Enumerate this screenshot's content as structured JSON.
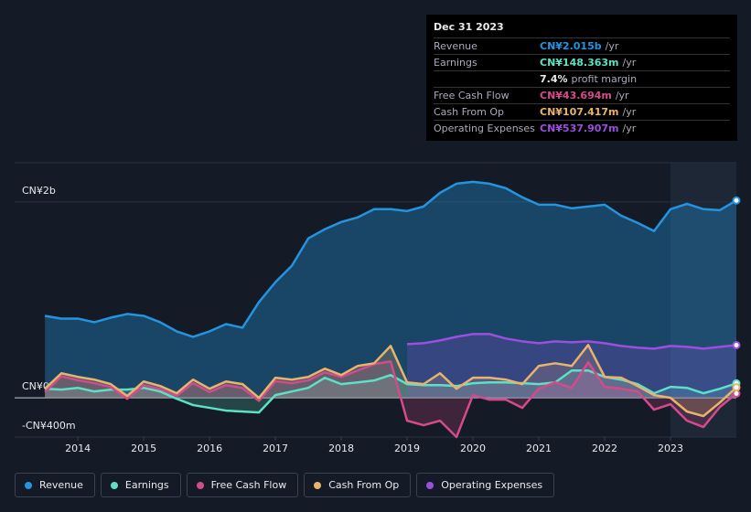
{
  "chart_data": {
    "type": "area-line",
    "x": [
      2013.5,
      2013.75,
      2014,
      2014.25,
      2014.5,
      2014.75,
      2015,
      2015.25,
      2015.5,
      2015.75,
      2016,
      2016.25,
      2016.5,
      2016.75,
      2017,
      2017.25,
      2017.5,
      2017.75,
      2018,
      2018.25,
      2018.5,
      2018.75,
      2019,
      2019.25,
      2019.5,
      2019.75,
      2020,
      2020.25,
      2020.5,
      2020.75,
      2021,
      2021.25,
      2021.5,
      2021.75,
      2022,
      2022.25,
      2022.5,
      2022.75,
      2023,
      2023.25,
      2023.5,
      2023.75,
      2024
    ],
    "xlim": [
      2013.04,
      2024
    ],
    "xticks": [
      2014,
      2015,
      2016,
      2017,
      2018,
      2019,
      2020,
      2021,
      2022,
      2023
    ],
    "ylim": [
      -400,
      2400
    ],
    "yticks": [
      {
        "value": 2000,
        "label": "CN¥2b"
      },
      {
        "value": 0,
        "label": "CN¥0"
      },
      {
        "value": -400,
        "label": "-CN¥400m"
      }
    ],
    "grid": true,
    "highlight_from": 2023,
    "series": [
      {
        "name": "Revenue",
        "color": "#2394df",
        "values": [
          837,
          809,
          809,
          772,
          819,
          856,
          837,
          772,
          679,
          623,
          679,
          753,
          716,
          977,
          1181,
          1349,
          1628,
          1721,
          1795,
          1842,
          1926,
          1926,
          1907,
          1953,
          2093,
          2186,
          2205,
          2186,
          2140,
          2047,
          1972,
          1972,
          1935,
          1953,
          1972,
          1860,
          1786,
          1702,
          1926,
          1981,
          1926,
          1916,
          2015
        ]
      },
      {
        "name": "Earnings",
        "color": "#5ce0c6",
        "values": [
          93,
          84,
          102,
          65,
          84,
          84,
          102,
          65,
          -9,
          -74,
          -102,
          -130,
          -140,
          -149,
          28,
          65,
          102,
          205,
          140,
          158,
          177,
          233,
          140,
          130,
          130,
          121,
          149,
          158,
          158,
          149,
          140,
          158,
          279,
          279,
          214,
          186,
          140,
          47,
          112,
          102,
          47,
          93,
          148
        ]
      },
      {
        "name": "Free Cash Flow",
        "color": "#d44b8c",
        "values": [
          60,
          220,
          180,
          150,
          110,
          -10,
          130,
          90,
          20,
          150,
          60,
          130,
          100,
          -30,
          170,
          150,
          180,
          260,
          214,
          279,
          344,
          372,
          -233,
          -279,
          -233,
          -400,
          28,
          -19,
          -19,
          -102,
          93,
          158,
          102,
          363,
          112,
          93,
          65,
          -121,
          -65,
          -233,
          -298,
          -93,
          44
        ]
      },
      {
        "name": "Cash From Op",
        "color": "#e8b46c",
        "values": [
          93,
          251,
          214,
          186,
          140,
          19,
          167,
          121,
          47,
          186,
          93,
          167,
          140,
          0,
          205,
          186,
          214,
          298,
          233,
          326,
          353,
          530,
          158,
          140,
          251,
          93,
          205,
          205,
          186,
          140,
          326,
          353,
          326,
          540,
          214,
          205,
          121,
          28,
          0,
          -140,
          -186,
          -47,
          107
        ]
      },
      {
        "name": "Operating Expenses",
        "color": "#9c4fdf",
        "values": [
          null,
          null,
          null,
          null,
          null,
          null,
          null,
          null,
          null,
          null,
          null,
          null,
          null,
          null,
          null,
          null,
          null,
          null,
          null,
          null,
          null,
          null,
          549,
          558,
          586,
          623,
          651,
          651,
          605,
          577,
          558,
          577,
          567,
          577,
          558,
          530,
          512,
          502,
          530,
          521,
          502,
          521,
          538
        ]
      }
    ]
  },
  "tooltip": {
    "date": "Dec 31 2023",
    "rows": [
      {
        "label": "Revenue",
        "value": "CN¥2.015b",
        "suffix": "/yr",
        "color": "#2394df"
      },
      {
        "label": "Earnings",
        "value": "CN¥148.363m",
        "suffix": "/yr",
        "color": "#5ce0c6"
      },
      {
        "label": "Free Cash Flow",
        "value": "CN¥43.694m",
        "suffix": "/yr",
        "color": "#d44b8c"
      },
      {
        "label": "Cash From Op",
        "value": "CN¥107.417m",
        "suffix": "/yr",
        "color": "#e8b46c"
      },
      {
        "label": "Operating Expenses",
        "value": "CN¥537.907m",
        "suffix": "/yr",
        "color": "#9c4fdf"
      }
    ],
    "margin": {
      "value": "7.4%",
      "text": "profit margin"
    }
  }
}
